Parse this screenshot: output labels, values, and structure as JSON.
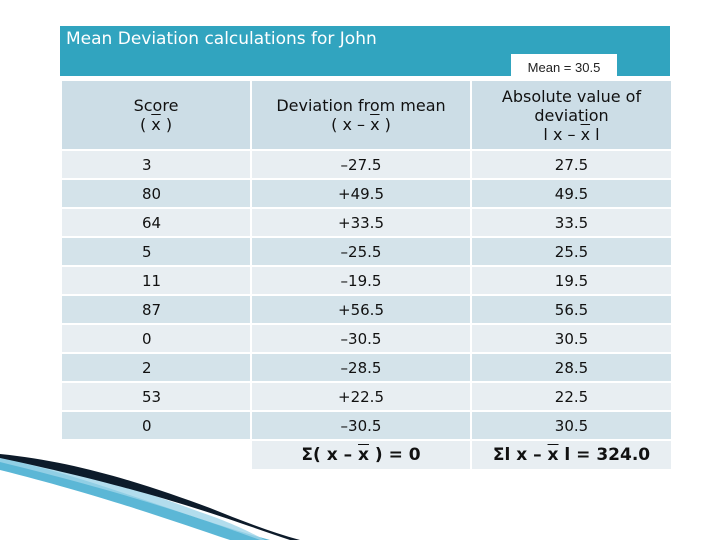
{
  "slide": {
    "title": "Mean Deviation calculations for John",
    "mean_label": "Mean = 30.5"
  },
  "table": {
    "headers": [
      {
        "line1": "Score",
        "line2_pre": "( ",
        "line2_ov": "x",
        "line2_post": " )"
      },
      {
        "line1": "Deviation from mean",
        "line2_pre": "( x – ",
        "line2_ov": "x",
        "line2_post": " )"
      },
      {
        "line1": "Absolute value of deviation",
        "line2_pre": "l x – ",
        "line2_ov": "x",
        "line2_post": " l"
      }
    ],
    "rows": [
      [
        "3",
        "–27.5",
        "27.5"
      ],
      [
        "80",
        "+49.5",
        "49.5"
      ],
      [
        "64",
        "+33.5",
        "33.5"
      ],
      [
        "5",
        "–25.5",
        "25.5"
      ],
      [
        "11",
        "–19.5",
        "19.5"
      ],
      [
        "87",
        "+56.5",
        "56.5"
      ],
      [
        "0",
        "–30.5",
        "30.5"
      ],
      [
        "2",
        "–28.5",
        "28.5"
      ],
      [
        "53",
        "+22.5",
        "22.5"
      ],
      [
        "0",
        "–30.5",
        "30.5"
      ]
    ],
    "sum_deviation": {
      "pre": "Σ( x – ",
      "ov": "x",
      "post": " ) = 0"
    },
    "sum_absolute": {
      "pre": "Σl x – ",
      "ov": "x",
      "post": " l = 324.0"
    }
  }
}
